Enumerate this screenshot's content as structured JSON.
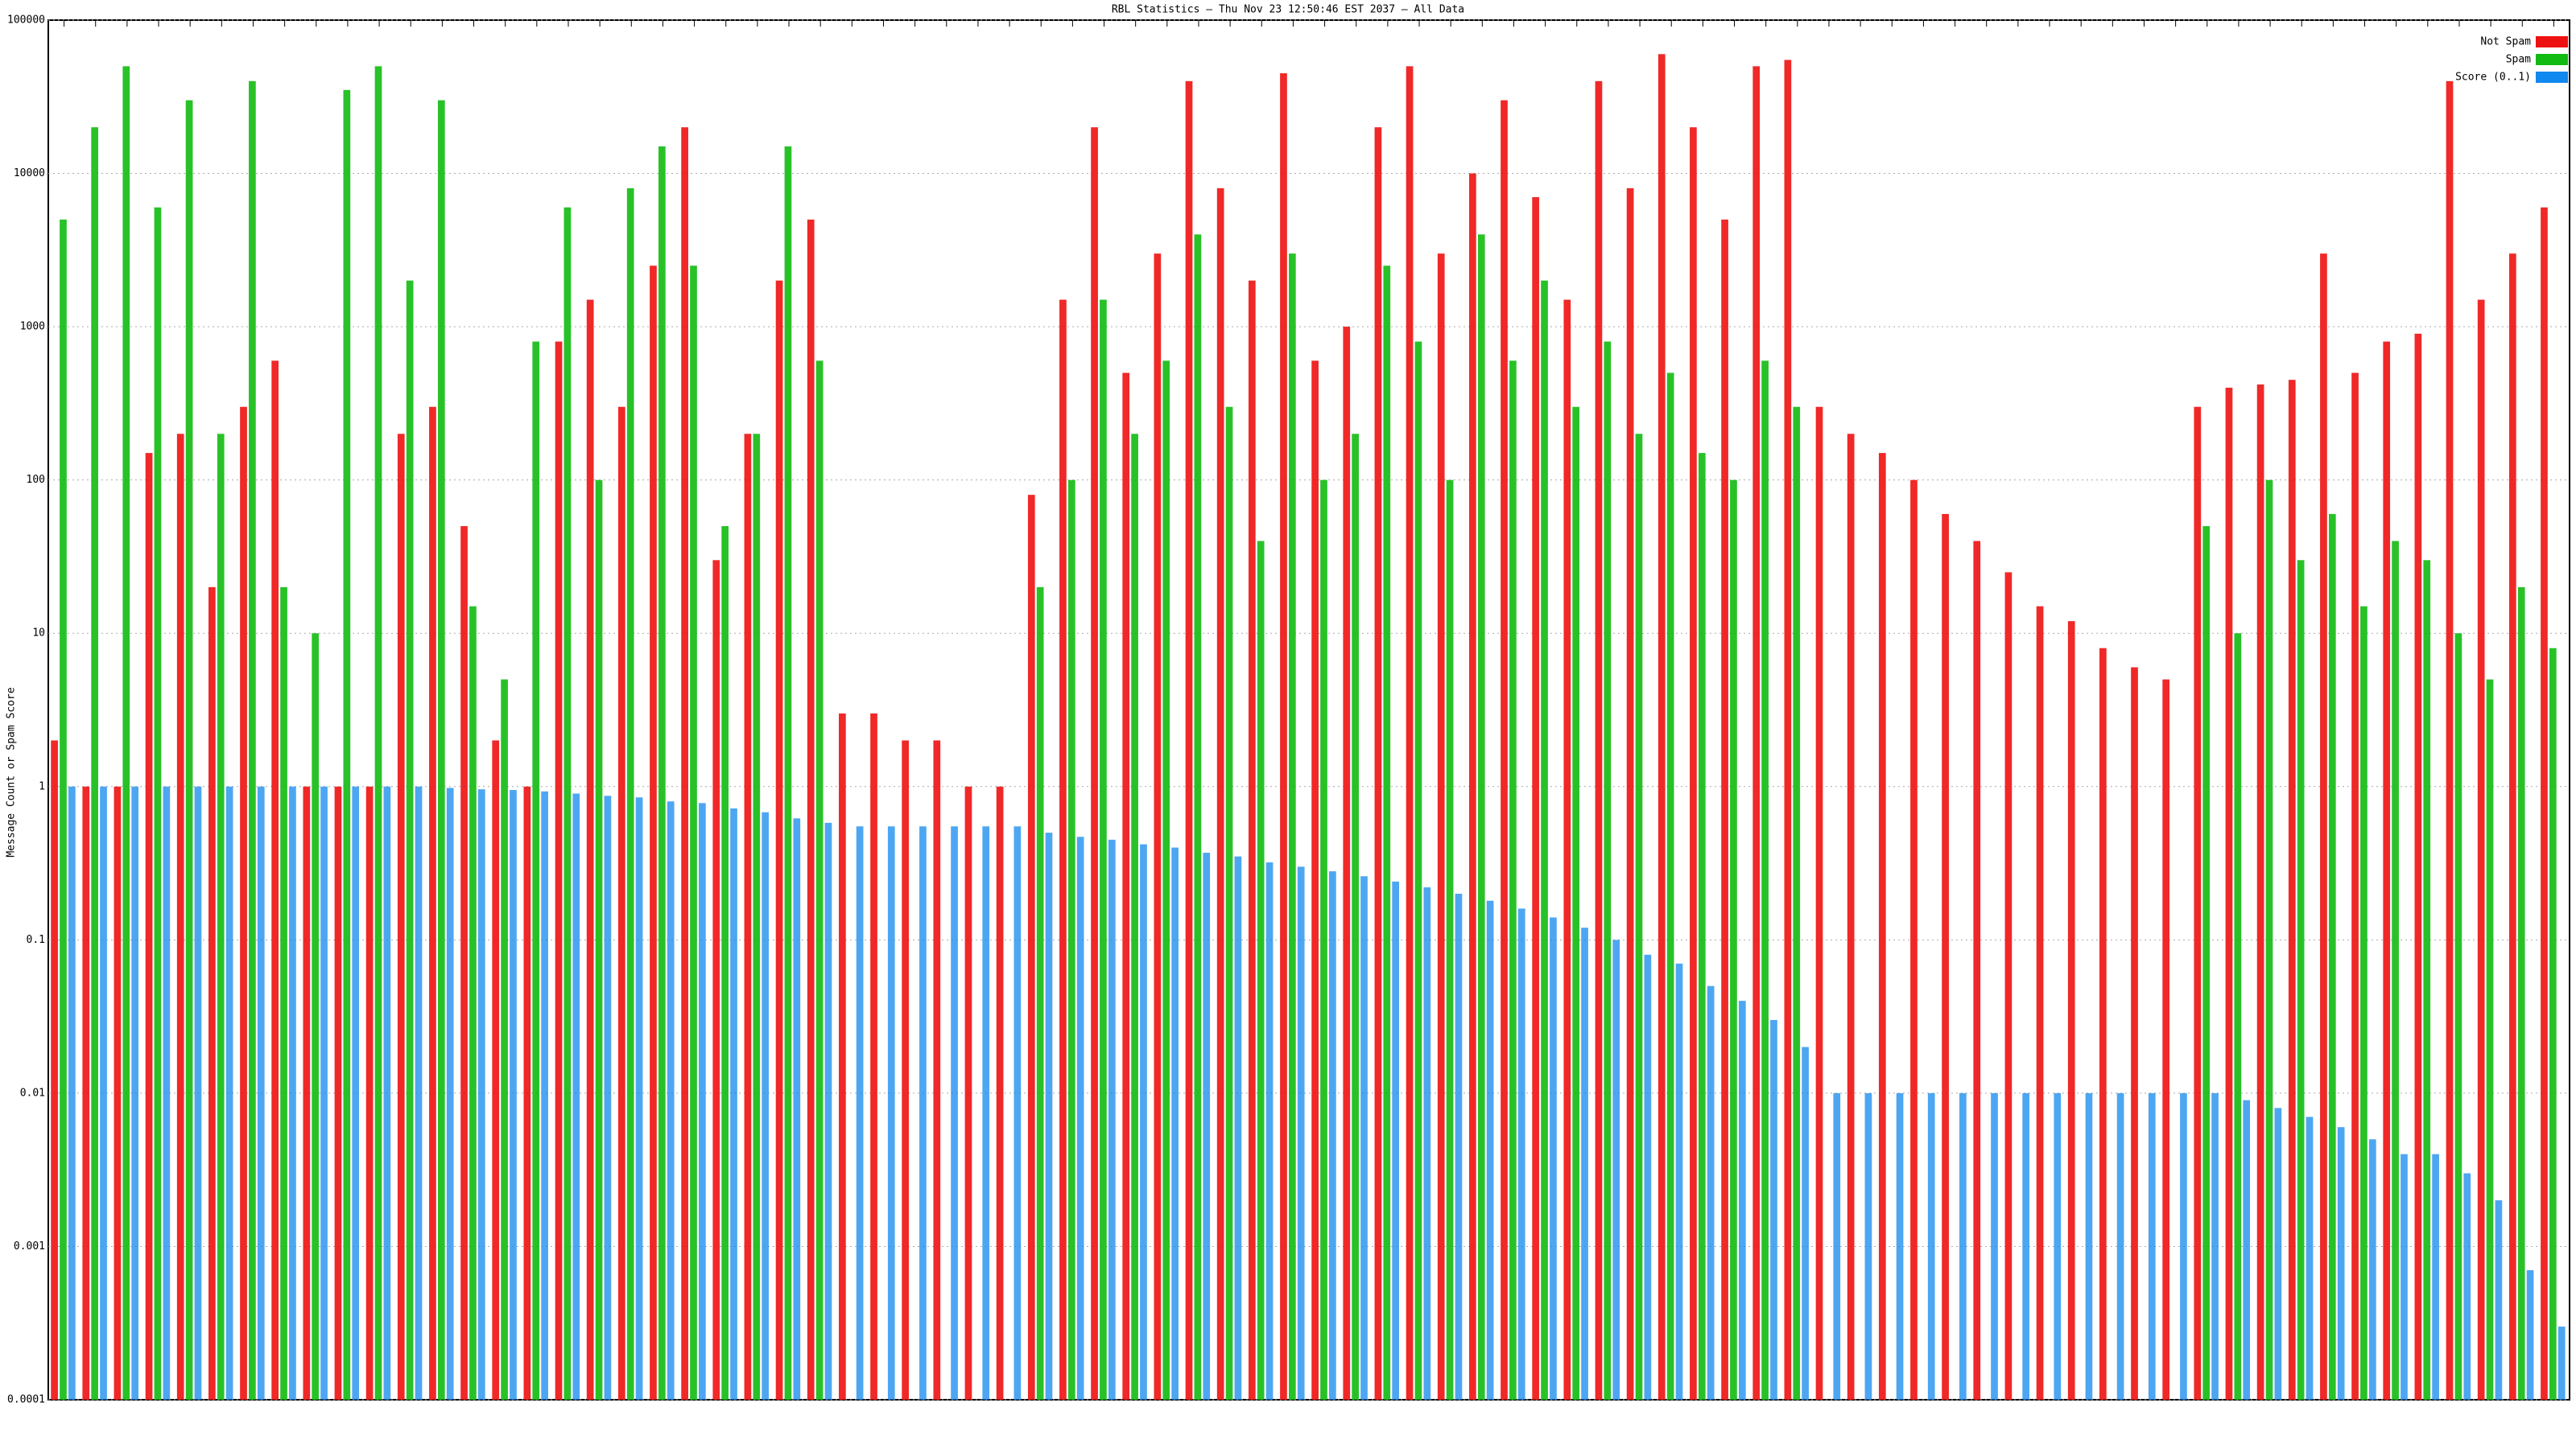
{
  "chart_data": {
    "type": "bar",
    "title": "RBL Statistics — Thu Nov 23 12:50:46 EST 2037 — All Data",
    "y_label": "Message Count or Spam Score",
    "log_scale": true,
    "grid": true,
    "legend": "top-right",
    "ylim": [
      0.0001,
      100000
    ],
    "yticks": [
      0.0001,
      0.001,
      0.01,
      0.1,
      1,
      10,
      100,
      1000,
      10000,
      100000
    ],
    "categories": [
      null,
      null,
      null,
      null,
      null,
      null,
      null,
      null,
      null,
      null,
      null,
      null,
      null,
      null,
      null,
      null,
      null,
      null,
      null,
      null,
      null,
      null,
      null,
      null,
      null,
      null,
      null,
      null,
      null,
      null,
      null,
      null,
      null,
      null,
      null,
      null,
      null,
      null,
      null,
      null,
      null,
      null,
      null,
      null,
      null,
      null,
      null,
      null,
      null,
      null,
      null,
      null,
      null,
      null,
      null,
      null,
      null,
      null,
      null,
      null,
      null,
      null,
      null,
      null,
      null,
      null,
      null,
      null,
      null,
      null,
      null,
      null,
      null,
      null,
      null,
      null,
      null,
      null,
      null,
      null
    ],
    "series": [
      {
        "name": "Not Spam",
        "color": "#ee1111",
        "values": [
          2,
          1,
          1,
          150,
          200,
          20,
          300,
          600,
          1,
          1,
          1,
          200,
          300,
          50,
          2,
          1,
          800,
          1500,
          300,
          2500,
          20000,
          30,
          200,
          2000,
          5000,
          3,
          3,
          2,
          2,
          1,
          1,
          80,
          1500,
          20000,
          500,
          3000,
          40000,
          8000,
          2000,
          45000,
          600,
          1000,
          20000,
          50000,
          3000,
          10000,
          30000,
          7000,
          1500,
          40000,
          8000,
          60000,
          20000,
          5000,
          50000,
          55000,
          300,
          200,
          150,
          100,
          60,
          40,
          25,
          15,
          12,
          8,
          6,
          5,
          300,
          400,
          420,
          450,
          3000,
          500,
          800,
          900,
          40000,
          1500,
          3000,
          6000
        ]
      },
      {
        "name": "Spam",
        "color": "#11bb11",
        "values": [
          5000,
          20000,
          50000,
          6000,
          30000,
          200,
          40000,
          20,
          10,
          35000,
          50000,
          2000,
          30000,
          15,
          5,
          800,
          6000,
          100,
          8000,
          15000,
          2500,
          50,
          200,
          15000,
          600,
          null,
          null,
          null,
          null,
          null,
          null,
          20,
          100,
          1500,
          200,
          600,
          4000,
          300,
          40,
          3000,
          100,
          200,
          2500,
          800,
          100,
          4000,
          600,
          2000,
          300,
          800,
          200,
          500,
          150,
          100,
          600,
          300,
          null,
          null,
          null,
          null,
          null,
          null,
          null,
          null,
          null,
          null,
          null,
          null,
          50,
          10,
          100,
          30,
          60,
          15,
          40,
          30,
          10,
          5,
          20,
          8
        ]
      },
      {
        "name": "Score (0..1)",
        "color": "#1188ee",
        "values": [
          1,
          1,
          1,
          1,
          1,
          1,
          1,
          1,
          1,
          1,
          1,
          1,
          0.98,
          0.96,
          0.95,
          0.93,
          0.9,
          0.87,
          0.85,
          0.8,
          0.78,
          0.72,
          0.68,
          0.62,
          0.58,
          0.55,
          0.55,
          0.55,
          0.55,
          0.55,
          0.55,
          0.5,
          0.47,
          0.45,
          0.42,
          0.4,
          0.37,
          0.35,
          0.32,
          0.3,
          0.28,
          0.26,
          0.24,
          0.22,
          0.2,
          0.18,
          0.16,
          0.14,
          0.12,
          0.1,
          0.08,
          0.07,
          0.05,
          0.04,
          0.03,
          0.02,
          0.01,
          0.01,
          0.01,
          0.01,
          0.01,
          0.01,
          0.01,
          0.01,
          0.01,
          0.01,
          0.01,
          0.01,
          0.01,
          0.009,
          0.008,
          0.007,
          0.006,
          0.005,
          0.004,
          0.004,
          0.003,
          0.002,
          0.0007,
          0.0003
        ]
      }
    ]
  }
}
